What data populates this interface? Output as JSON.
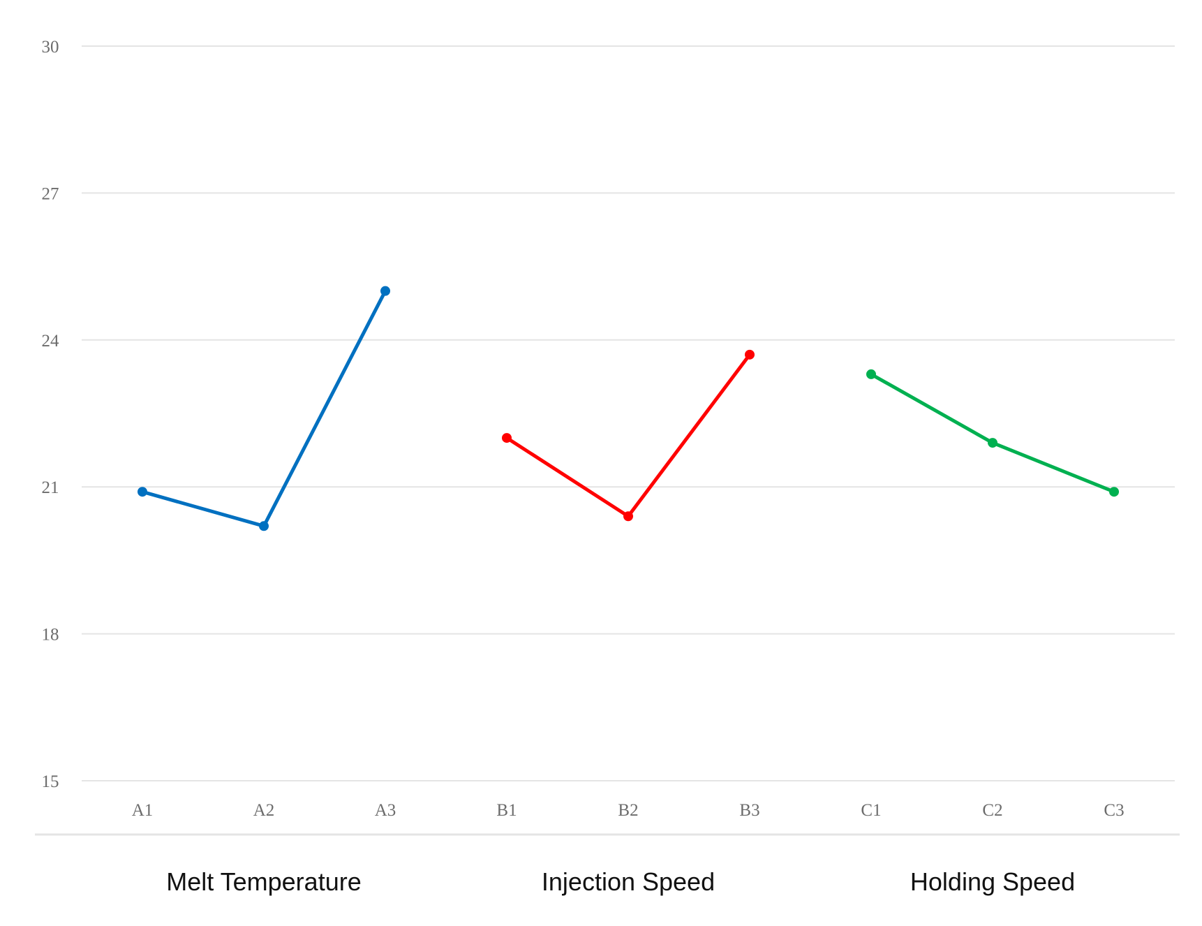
{
  "chart_data": {
    "type": "line",
    "title": "",
    "xlabel": "",
    "ylabel": "",
    "ylim": [
      15,
      30
    ],
    "yticks": [
      15,
      18,
      21,
      24,
      27,
      30
    ],
    "grid": true,
    "categories": [
      "A1",
      "A2",
      "A3",
      "B1",
      "B2",
      "B3",
      "C1",
      "C2",
      "C3"
    ],
    "series": [
      {
        "color": "#0070c0",
        "x": [
          "A1",
          "A2",
          "A3"
        ],
        "values": [
          20.9,
          20.2,
          25.0
        ]
      },
      {
        "color": "#ff0000",
        "x": [
          "B1",
          "B2",
          "B3"
        ],
        "values": [
          22.0,
          20.4,
          23.7
        ]
      },
      {
        "color": "#00b050",
        "x": [
          "C1",
          "C2",
          "C3"
        ],
        "values": [
          23.3,
          21.9,
          20.9
        ]
      }
    ],
    "groups": [
      {
        "label": "Melt Temperature",
        "categories": [
          "A1",
          "A2",
          "A3"
        ]
      },
      {
        "label": "Injection Speed",
        "categories": [
          "B1",
          "B2",
          "B3"
        ]
      },
      {
        "label": "Holding Speed",
        "categories": [
          "C1",
          "C2",
          "C3"
        ]
      }
    ]
  }
}
